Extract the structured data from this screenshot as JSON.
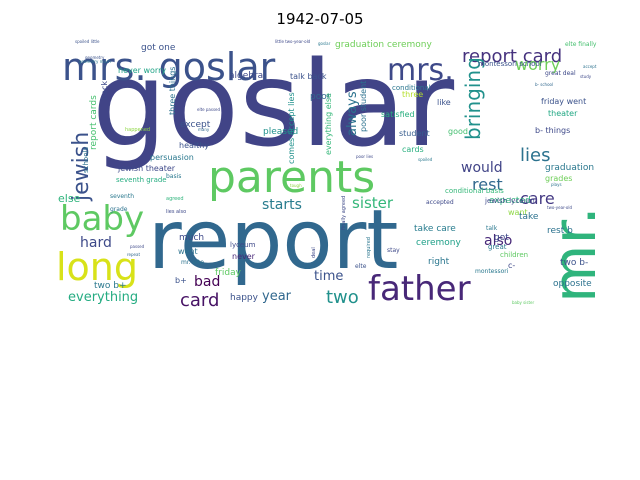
{
  "title": "1942-07-05",
  "words": [
    {
      "text": "goslar",
      "color": "#414487",
      "rot": 0
    },
    {
      "text": "report",
      "color": "#31688e",
      "rot": 0
    },
    {
      "text": "mr.",
      "color": "#2fb47c",
      "rot": -90
    },
    {
      "text": "parents",
      "color": "#5ec962",
      "rot": 0
    },
    {
      "text": "mrs. goslar",
      "color": "#3b528b",
      "rot": 0
    },
    {
      "text": "father",
      "color": "#482878",
      "rot": 0
    },
    {
      "text": "long",
      "color": "#d8e219",
      "rot": 0
    },
    {
      "text": "baby",
      "color": "#5ec962",
      "rot": 0
    },
    {
      "text": "mrs.",
      "color": "#3e4989",
      "rot": 0
    },
    {
      "text": "jewish",
      "color": "#3b528b",
      "rot": -90
    },
    {
      "text": "report card",
      "color": "#46327e",
      "rot": 0
    },
    {
      "text": "bringing",
      "color": "#21918c",
      "rot": -90
    },
    {
      "text": "worry",
      "color": "#6ece58",
      "rot": 0
    },
    {
      "text": "rest",
      "color": "#31688e",
      "rot": 0
    },
    {
      "text": "lies",
      "color": "#2c728e",
      "rot": 0
    },
    {
      "text": "care",
      "color": "#443983",
      "rot": 0
    },
    {
      "text": "sister",
      "color": "#35b779",
      "rot": 0
    },
    {
      "text": "starts",
      "color": "#287c8e",
      "rot": 0
    },
    {
      "text": "would",
      "color": "#414487",
      "rot": 0
    },
    {
      "text": "also",
      "color": "#482878",
      "rot": 0
    },
    {
      "text": "always",
      "color": "#2c728e",
      "rot": -90
    },
    {
      "text": "hard",
      "color": "#3e4a89",
      "rot": 0
    },
    {
      "text": "two",
      "color": "#21918c",
      "rot": 0
    },
    {
      "text": "card",
      "color": "#471365",
      "rot": 0
    },
    {
      "text": "bad",
      "color": "#440154",
      "rot": 0
    },
    {
      "text": "everything",
      "color": "#25ac82",
      "rot": 0
    },
    {
      "text": "time",
      "color": "#3b528b",
      "rot": 0
    },
    {
      "text": "year",
      "color": "#31688e",
      "rot": 0
    },
    {
      "text": "else",
      "color": "#2fb47c",
      "rot": 0
    },
    {
      "text": "graduation ceremony",
      "color": "#6ece58",
      "rot": 0
    },
    {
      "text": "got one",
      "color": "#3b528b",
      "rot": 0
    },
    {
      "text": "never worry",
      "color": "#20a386",
      "rot": 0
    },
    {
      "text": "algebra",
      "color": "#3e4989",
      "rot": 0
    },
    {
      "text": "talk back",
      "color": "#3b528b",
      "rot": 0
    },
    {
      "text": "poor student",
      "color": "#2c728e",
      "rot": -90
    },
    {
      "text": "satisfied",
      "color": "#29af7f",
      "rot": 0
    },
    {
      "text": "conditional",
      "color": "#2a768e",
      "rot": 0
    },
    {
      "text": "elte finally",
      "color": "#46c06f",
      "rot": 0
    },
    {
      "text": "friday went",
      "color": "#3b528b",
      "rot": 0
    },
    {
      "text": "theater",
      "color": "#22a884",
      "rot": 0
    },
    {
      "text": "b- things",
      "color": "#3e4989",
      "rot": 0
    },
    {
      "text": "graduation",
      "color": "#2a788e",
      "rot": 0
    },
    {
      "text": "grades",
      "color": "#6ece58",
      "rot": 0
    },
    {
      "text": "expected",
      "color": "#2fb47c",
      "rot": 0
    },
    {
      "text": "want",
      "color": "#8fd744",
      "rot": 0
    },
    {
      "text": "take care",
      "color": "#287c8e",
      "rot": 0
    },
    {
      "text": "ceremony",
      "color": "#1fa088",
      "rot": 0
    },
    {
      "text": "right",
      "color": "#2a768e",
      "rot": 0
    },
    {
      "text": "cards",
      "color": "#29af7f",
      "rot": 0
    },
    {
      "text": "student",
      "color": "#365c8d",
      "rot": 0
    },
    {
      "text": "good",
      "color": "#44bf70",
      "rot": 0
    },
    {
      "text": "like",
      "color": "#3b528b",
      "rot": 0
    },
    {
      "text": "three",
      "color": "#b5de2b",
      "rot": 0
    },
    {
      "text": "poor",
      "color": "#31688e",
      "rot": 0
    },
    {
      "text": "pleased",
      "color": "#21918c",
      "rot": 0
    },
    {
      "text": "except",
      "color": "#3b528b",
      "rot": 0
    },
    {
      "text": "three things",
      "color": "#2c728e",
      "rot": -90
    },
    {
      "text": "everything else",
      "color": "#35b779",
      "rot": -90
    },
    {
      "text": "comes accept lies",
      "color": "#21918c",
      "rot": -90
    },
    {
      "text": "healthy",
      "color": "#3b528b",
      "rot": 0
    },
    {
      "text": "persuasion",
      "color": "#2a788e",
      "rot": 0
    },
    {
      "text": "jewish theater",
      "color": "#3e4989",
      "rot": 0
    },
    {
      "text": "seventh grade",
      "color": "#26ad81",
      "rot": 0
    },
    {
      "text": "report cards",
      "color": "#46c06f",
      "rot": -90
    },
    {
      "text": "back",
      "color": "#3e4a89",
      "rot": -90
    },
    {
      "text": "much",
      "color": "#3e4989",
      "rot": 0
    },
    {
      "text": "went",
      "color": "#2c728e",
      "rot": 0
    },
    {
      "text": "b+",
      "color": "#3b528b",
      "rot": 0
    },
    {
      "text": "two b+",
      "color": "#2a788e",
      "rot": 0
    },
    {
      "text": "never",
      "color": "#482878",
      "rot": 0
    },
    {
      "text": "happy",
      "color": "#3b528b",
      "rot": 0
    },
    {
      "text": "friday",
      "color": "#5ec962",
      "rot": 0
    },
    {
      "text": "lyceum",
      "color": "#3e4989",
      "rot": 0
    },
    {
      "text": "mr. elte",
      "color": "#2c728e",
      "rot": 0
    },
    {
      "text": "opposite",
      "color": "#2c728e",
      "rot": 0
    },
    {
      "text": "two b-",
      "color": "#3b528b",
      "rot": 0
    },
    {
      "text": "rest b",
      "color": "#2c728e",
      "rot": 0
    },
    {
      "text": "got",
      "color": "#3e4989",
      "rot": 0
    },
    {
      "text": "great",
      "color": "#2a788e",
      "rot": 0
    },
    {
      "text": "children",
      "color": "#5ec962",
      "rot": 0
    },
    {
      "text": "take",
      "color": "#2c728e",
      "rot": 0
    },
    {
      "text": "accepted",
      "color": "#3e4989",
      "rot": 0
    },
    {
      "text": "conditional basis",
      "color": "#35b779",
      "rot": 0
    },
    {
      "text": "jewish lyceum",
      "color": "#3e4989",
      "rot": 0
    },
    {
      "text": "montessori school",
      "color": "#3b528b",
      "rot": 0
    },
    {
      "text": "montessori",
      "color": "#2a788e",
      "rot": 0
    },
    {
      "text": "great deal",
      "color": "#3e4989",
      "rot": 0
    },
    {
      "text": "schools",
      "color": "#2c728e",
      "rot": -90
    },
    {
      "text": "basis",
      "color": "#2a788e",
      "rot": 0
    },
    {
      "text": "finally agreed",
      "color": "#3e4989",
      "rot": -90
    },
    {
      "text": "required",
      "color": "#2a768e",
      "rot": -90
    },
    {
      "text": "stay",
      "color": "#3e4989",
      "rot": 0
    },
    {
      "text": "talk",
      "color": "#2a788e",
      "rot": 0
    },
    {
      "text": "deal",
      "color": "#3e4989",
      "rot": -90
    },
    {
      "text": "elte",
      "color": "#3b528b",
      "rot": 0
    },
    {
      "text": "c-",
      "color": "#3e4989",
      "rot": 0
    },
    {
      "text": "agreed",
      "color": "#2fb47c",
      "rot": 0
    },
    {
      "text": "lies also",
      "color": "#3e4989",
      "rot": 0
    },
    {
      "text": "seventh",
      "color": "#2a788e",
      "rot": 0
    },
    {
      "text": "grade",
      "color": "#2c728e",
      "rot": 0
    },
    {
      "text": "spoiled little",
      "color": "#3b528b",
      "rot": 0
    },
    {
      "text": "little two-year-old",
      "color": "#3e4989",
      "rot": 0
    },
    {
      "text": "goslar",
      "color": "#2a788e",
      "rot": 0
    },
    {
      "text": "b- school",
      "color": "#31688e",
      "rot": 0
    },
    {
      "text": "study",
      "color": "#3e4989",
      "rot": 0
    },
    {
      "text": "plays",
      "color": "#2c728e",
      "rot": 0
    },
    {
      "text": "happened",
      "color": "#8fd744",
      "rot": 0
    },
    {
      "text": "elte passed",
      "color": "#3e4989",
      "rot": 0
    },
    {
      "text": "many",
      "color": "#31688e",
      "rot": 0
    },
    {
      "text": "poor lies",
      "color": "#3e4989",
      "rot": 0
    },
    {
      "text": "spoiled",
      "color": "#2a788e",
      "rot": 0
    },
    {
      "text": "two-year-old",
      "color": "#3e4989",
      "rot": 0
    },
    {
      "text": "baby sister",
      "color": "#5ec962",
      "rot": 0
    },
    {
      "text": "geometry",
      "color": "#3b528b",
      "rot": 0
    },
    {
      "text": "passed",
      "color": "#3e4989",
      "rot": 0
    },
    {
      "text": "repeat",
      "color": "#31688e",
      "rot": 0
    },
    {
      "text": "tough",
      "color": "#8fd744",
      "rot": 0
    },
    {
      "text": "geometry much",
      "color": "#2a788e",
      "rot": 0
    },
    {
      "text": "accept",
      "color": "#2c728e",
      "rot": 0
    }
  ]
}
